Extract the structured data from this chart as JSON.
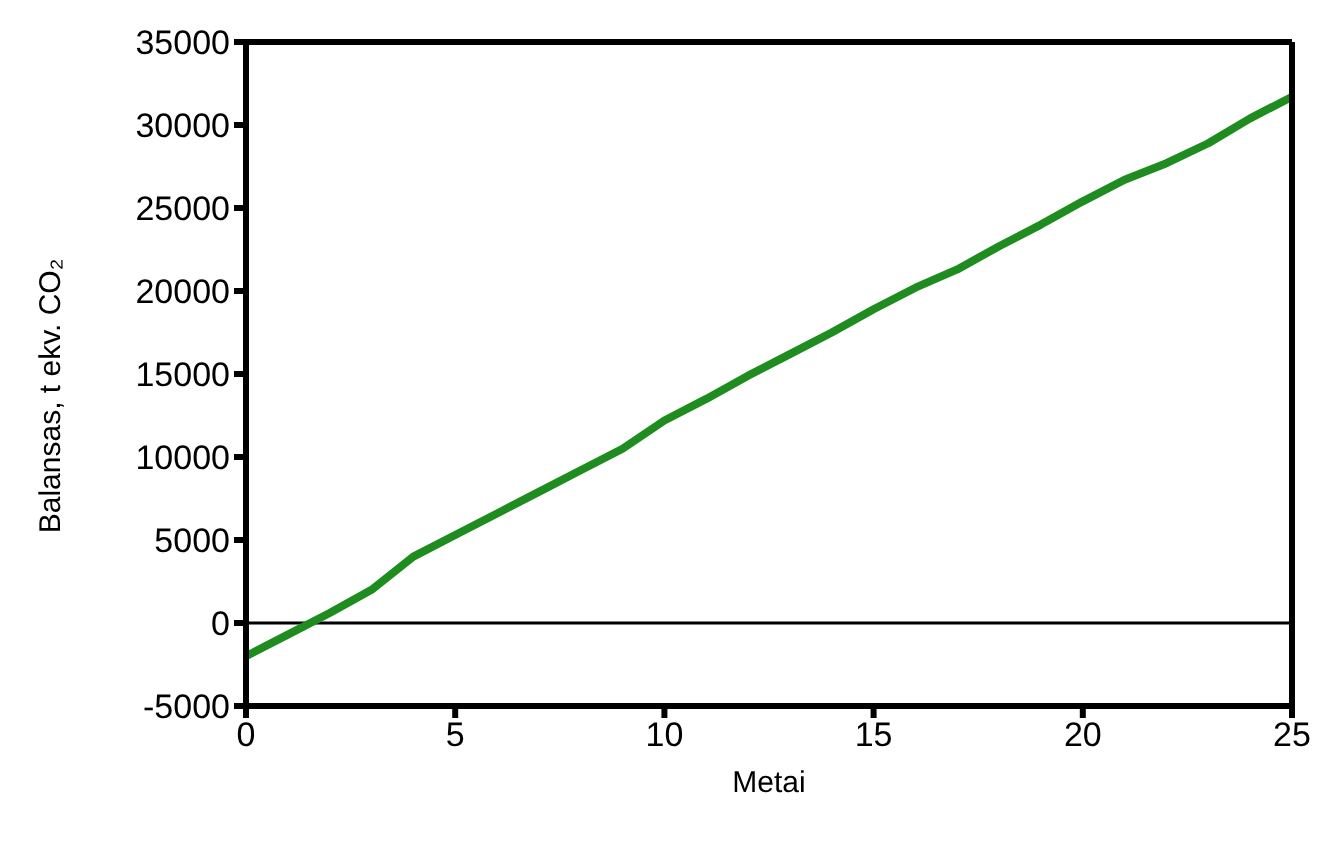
{
  "chart_data": {
    "type": "line",
    "xlabel": "Metai",
    "ylabel": "Balansas, t ekv. CO₂",
    "x": [
      0,
      1,
      2,
      3,
      4,
      5,
      6,
      7,
      8,
      9,
      10,
      11,
      12,
      13,
      14,
      15,
      16,
      17,
      18,
      19,
      20,
      21,
      22,
      23,
      24,
      25
    ],
    "series": [
      {
        "color": "#1e8c1e",
        "values": [
          -2000,
          -700,
          600,
          2000,
          4000,
          5300,
          6600,
          7900,
          9200,
          10500,
          12200,
          13500,
          14900,
          16200,
          17500,
          18900,
          20200,
          21300,
          22700,
          24000,
          25400,
          26700,
          27700,
          28900,
          30400,
          31700
        ]
      }
    ],
    "xlim": [
      0,
      25
    ],
    "xticks": [
      0,
      5,
      10,
      15,
      20,
      25
    ],
    "ylim": [
      -5000,
      35000
    ],
    "yticks": [
      -5000,
      0,
      5000,
      10000,
      15000,
      20000,
      25000,
      30000,
      35000
    ],
    "ref_lines": [
      {
        "axis": "y",
        "value": 0,
        "color": "#000000"
      }
    ],
    "grid": false,
    "legend": false,
    "marker": "none",
    "line_style": "solid"
  }
}
